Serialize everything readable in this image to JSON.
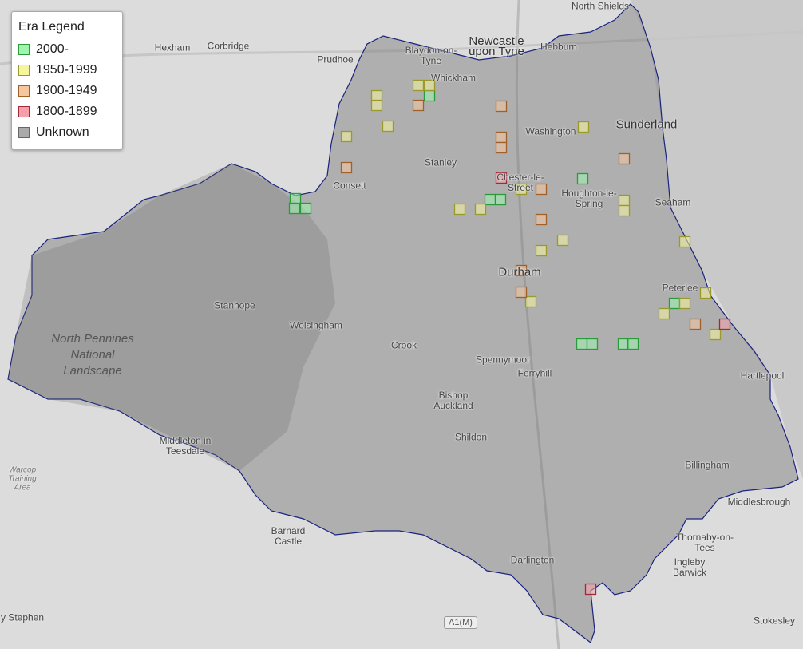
{
  "legend": {
    "title": "Era Legend",
    "items": [
      {
        "label": "2000-",
        "fill": "#9ef5b0",
        "stroke": "#2a9a3a"
      },
      {
        "label": "1950-1999",
        "fill": "#f5f59e",
        "stroke": "#9a9a2a"
      },
      {
        "label": "1900-1949",
        "fill": "#f5c79e",
        "stroke": "#a0602a"
      },
      {
        "label": "1800-1899",
        "fill": "#f5a0a8",
        "stroke": "#a02a3a"
      },
      {
        "label": "Unknown",
        "fill": "#aaaaaa",
        "stroke": "#666666"
      }
    ]
  },
  "places": [
    "North Shields",
    "Newcastle upon Tyne",
    "Hebburn",
    "Hexham",
    "Corbridge",
    "Prudhoe",
    "Blaydon-on-Tyne",
    "Whickham",
    "Washington",
    "Sunderland",
    "Stanley",
    "Consett",
    "Chester-le-Street",
    "Houghton-le-Spring",
    "Seaham",
    "Durham",
    "Peterlee",
    "Stanhope",
    "Wolsingham",
    "Crook",
    "Spennymoor",
    "Ferryhill",
    "Hartlepool",
    "Bishop Auckland",
    "Shildon",
    "Middleton in Teesdale",
    "Billingham",
    "Middlesbrough",
    "Barnard Castle",
    "Thornaby-on-Tees",
    "Darlington",
    "Ingleby Barwick",
    "Stokesley",
    "Warcop Training Area",
    "y Stephen"
  ],
  "park_label": "North Pennines National Landscape",
  "road_shield": "A1(M)",
  "map": {
    "region_fill": "#777777",
    "region_stroke": "#1a237e",
    "markers": [
      {
        "era": 0,
        "lon_lat_px": null
      }
    ]
  },
  "buildings": [
    {
      "era": 0,
      "p": [
        370,
        249
      ]
    },
    {
      "era": 0,
      "p": [
        369,
        261
      ]
    },
    {
      "era": 0,
      "p": [
        383,
        261
      ]
    },
    {
      "era": 0,
      "p": [
        538,
        120
      ]
    },
    {
      "era": 0,
      "p": [
        614,
        250
      ]
    },
    {
      "era": 0,
      "p": [
        627,
        250
      ]
    },
    {
      "era": 0,
      "p": [
        730,
        224
      ]
    },
    {
      "era": 0,
      "p": [
        845,
        380
      ]
    },
    {
      "era": 0,
      "p": [
        729,
        431
      ]
    },
    {
      "era": 0,
      "p": [
        742,
        431
      ]
    },
    {
      "era": 0,
      "p": [
        781,
        431
      ]
    },
    {
      "era": 0,
      "p": [
        793,
        431
      ]
    },
    {
      "era": 1,
      "p": [
        434,
        171
      ]
    },
    {
      "era": 1,
      "p": [
        472,
        120
      ]
    },
    {
      "era": 1,
      "p": [
        472,
        132
      ]
    },
    {
      "era": 1,
      "p": [
        486,
        158
      ]
    },
    {
      "era": 1,
      "p": [
        524,
        107
      ]
    },
    {
      "era": 1,
      "p": [
        538,
        107
      ]
    },
    {
      "era": 1,
      "p": [
        653,
        237
      ]
    },
    {
      "era": 1,
      "p": [
        576,
        262
      ]
    },
    {
      "era": 1,
      "p": [
        602,
        262
      ]
    },
    {
      "era": 1,
      "p": [
        731,
        159
      ]
    },
    {
      "era": 1,
      "p": [
        782,
        251
      ]
    },
    {
      "era": 1,
      "p": [
        782,
        264
      ]
    },
    {
      "era": 1,
      "p": [
        705,
        301
      ]
    },
    {
      "era": 1,
      "p": [
        678,
        314
      ]
    },
    {
      "era": 1,
      "p": [
        858,
        303
      ]
    },
    {
      "era": 1,
      "p": [
        665,
        378
      ]
    },
    {
      "era": 1,
      "p": [
        858,
        380
      ]
    },
    {
      "era": 1,
      "p": [
        832,
        393
      ]
    },
    {
      "era": 1,
      "p": [
        884,
        367
      ]
    },
    {
      "era": 1,
      "p": [
        896,
        419
      ]
    },
    {
      "era": 2,
      "p": [
        524,
        132
      ]
    },
    {
      "era": 2,
      "p": [
        628,
        133
      ]
    },
    {
      "era": 2,
      "p": [
        628,
        172
      ]
    },
    {
      "era": 2,
      "p": [
        628,
        185
      ]
    },
    {
      "era": 2,
      "p": [
        434,
        210
      ]
    },
    {
      "era": 2,
      "p": [
        678,
        237
      ]
    },
    {
      "era": 2,
      "p": [
        678,
        275
      ]
    },
    {
      "era": 2,
      "p": [
        782,
        199
      ]
    },
    {
      "era": 2,
      "p": [
        653,
        339
      ]
    },
    {
      "era": 2,
      "p": [
        653,
        366
      ]
    },
    {
      "era": 2,
      "p": [
        871,
        406
      ]
    },
    {
      "era": 3,
      "p": [
        628,
        223
      ]
    },
    {
      "era": 3,
      "p": [
        908,
        406
      ]
    },
    {
      "era": 3,
      "p": [
        740,
        738
      ]
    }
  ]
}
